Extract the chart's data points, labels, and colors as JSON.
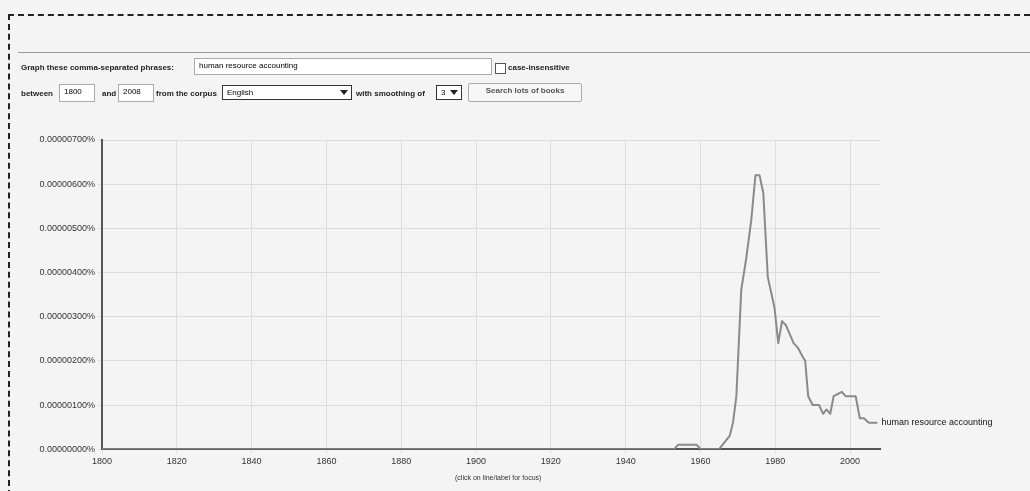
{
  "chart_data": {
    "type": "line",
    "annotations": [
      "Graph these comma-separated phrases:",
      "human resource accounting",
      "case-insensitive",
      "between",
      "1800",
      "and",
      "2008",
      "from the corpus",
      "English",
      "with smoothing of",
      "3",
      "Search lots of books",
      "(click on line/label for focus)"
    ],
    "series": [
      {
        "name": "human resource accounting",
        "color": "#8a8a8a",
        "x": [
          1800,
          1953,
          1954,
          1959,
          1960,
          1965,
          1967.8,
          1968.7,
          1969.6,
          1970.9,
          1972.2,
          1973.6,
          1974.7,
          1975.8,
          1976.8,
          1978,
          1979.8,
          1980.8,
          1981.8,
          1982.9,
          1984.9,
          1986,
          1987.3,
          1988,
          1988.8,
          1990,
          1991.7,
          1992.8,
          1993.7,
          1994.7,
          1995.6,
          1997.8,
          1998.8,
          2000.6,
          2001.5,
          2002.6,
          2003.7,
          2005,
          2007.3
        ],
        "values": [
          0,
          0,
          1e-07,
          1e-07,
          0,
          0,
          3e-07,
          6e-07,
          1.2e-06,
          3.6e-06,
          4.3e-06,
          5.2e-06,
          6.2e-06,
          6.2e-06,
          5.8e-06,
          3.9e-06,
          3.2e-06,
          2.4e-06,
          2.9e-06,
          2.8e-06,
          2.4e-06,
          2.3e-06,
          2.1e-06,
          2e-06,
          1.2e-06,
          1e-06,
          1e-06,
          8e-07,
          9e-07,
          8e-07,
          1.2e-06,
          1.3e-06,
          1.2e-06,
          1.2e-06,
          1.2e-06,
          7e-07,
          7e-07,
          6e-07,
          6e-07
        ]
      }
    ],
    "xlim": [
      1800,
      2008
    ],
    "xticks": [
      1800,
      1820,
      1840,
      1860,
      1880,
      1900,
      1920,
      1940,
      1960,
      1980,
      2000
    ],
    "ylim": [
      0,
      7e-06
    ],
    "yticks": [
      {
        "value": 0,
        "label": "0.00000000%"
      },
      {
        "value": 1e-06,
        "label": "0.00000100%"
      },
      {
        "value": 2e-06,
        "label": "0.00000200%"
      },
      {
        "value": 3e-06,
        "label": "0.00000300%"
      },
      {
        "value": 4e-06,
        "label": "0.00000400%"
      },
      {
        "value": 5e-06,
        "label": "0.00000500%"
      },
      {
        "value": 6e-06,
        "label": "0.00000600%"
      },
      {
        "value": 7e-06,
        "label": "0.00000700%"
      }
    ],
    "grid": true,
    "legend": false,
    "marker": "none",
    "line_style": "solid"
  }
}
